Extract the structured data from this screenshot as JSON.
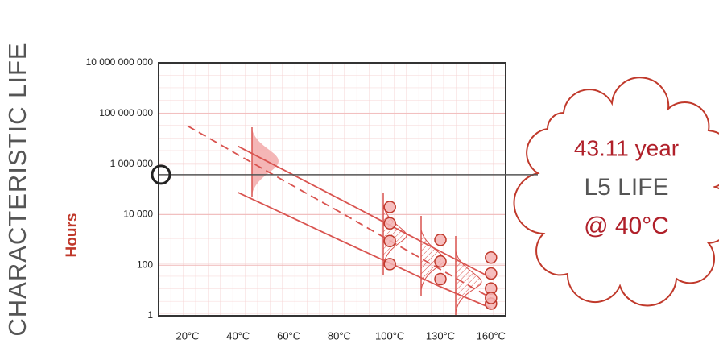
{
  "chart_data": {
    "type": "scatter",
    "y_label": "CHARACTERISTIC LIFE",
    "y_unit": "Hours",
    "categories": [
      "20°C",
      "40°C",
      "60°C",
      "80°C",
      "100°C",
      "130°C",
      "160°C"
    ],
    "log_y": true,
    "grid": true,
    "ylim": [
      1,
      10000000000
    ],
    "yticks": [
      {
        "value": 10000000000,
        "label": "10 000 000 000"
      },
      {
        "value": 100000000,
        "label": "100 000 000"
      },
      {
        "value": 1000000,
        "label": "1 000 000"
      },
      {
        "value": 10000,
        "label": "10 000"
      },
      100,
      1
    ],
    "series": [
      {
        "type": "scatter",
        "color": "#c0392b",
        "x": [
          "100°C",
          "100°C",
          "100°C",
          "100°C",
          "130°C",
          "130°C",
          "130°C",
          "160°C",
          "160°C",
          "160°C",
          "160°C",
          "160°C"
        ],
        "values": [
          20000,
          4500,
          900,
          110,
          1000,
          140,
          28,
          200,
          47,
          12,
          3,
          5
        ]
      },
      {
        "type": "line",
        "dashed": true,
        "color": "#d9534f",
        "values": [
          32000000,
          2300000,
          170000,
          13000,
          930,
          68,
          5
        ]
      },
      {
        "type": "line",
        "dashed": false,
        "color": "#d9534f",
        "values": [
          null,
          5000000,
          460000,
          42000,
          3800,
          350,
          32
        ]
      },
      {
        "type": "line",
        "dashed": false,
        "color": "#d9534f",
        "values": [
          null,
          74000,
          8700,
          1000,
          120,
          14,
          2
        ]
      }
    ],
    "reference_line": {
      "value": 377664,
      "color": "#555555"
    },
    "annotation": [
      "43.11 year",
      "L5 LIFE",
      "@ 40°C"
    ]
  }
}
